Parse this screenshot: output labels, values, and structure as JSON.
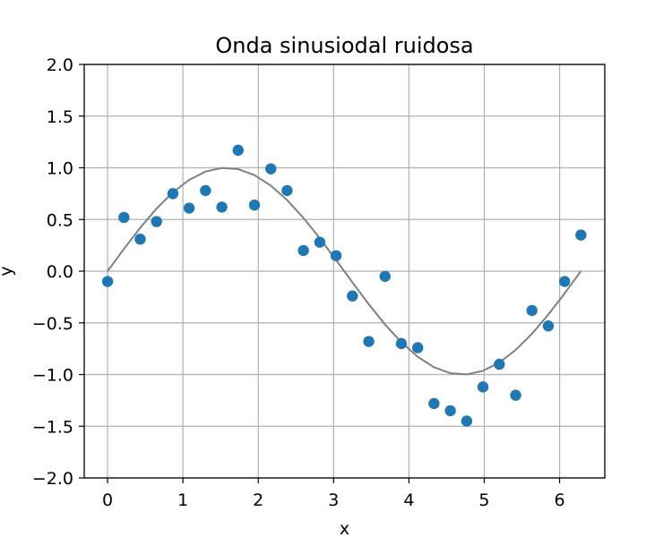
{
  "chart_data": {
    "type": "scatter",
    "title": "Onda sinusiodal ruidosa",
    "xlabel": "x",
    "ylabel": "y",
    "xlim": [
      -0.31,
      6.6
    ],
    "ylim": [
      -2.0,
      2.0
    ],
    "xticks": [
      0,
      1,
      2,
      3,
      4,
      5,
      6
    ],
    "yticks": [
      -2.0,
      -1.5,
      -1.0,
      -0.5,
      0.0,
      0.5,
      1.0,
      1.5,
      2.0
    ],
    "grid": true,
    "series": [
      {
        "kind": "scatter",
        "color": "#1f77b4",
        "x": [
          0.0,
          0.217,
          0.433,
          0.65,
          0.867,
          1.083,
          1.3,
          1.517,
          1.733,
          1.95,
          2.167,
          2.383,
          2.6,
          2.817,
          3.033,
          3.25,
          3.467,
          3.683,
          3.9,
          4.117,
          4.333,
          4.55,
          4.767,
          4.983,
          5.2,
          5.417,
          5.633,
          5.85,
          6.067,
          6.283
        ],
        "y": [
          -0.1,
          0.52,
          0.31,
          0.48,
          0.75,
          0.61,
          0.78,
          0.62,
          1.17,
          0.64,
          0.99,
          0.78,
          0.2,
          0.28,
          0.15,
          -0.24,
          -0.68,
          -0.05,
          -0.7,
          -0.74,
          -1.28,
          -1.35,
          -1.45,
          -1.12,
          -0.9,
          -1.2,
          -0.38,
          -0.53,
          -0.1,
          0.35
        ]
      },
      {
        "kind": "line",
        "color": "#808080",
        "function": "sin",
        "x_start": 0.0,
        "x_end": 6.283,
        "points": 30
      }
    ]
  }
}
